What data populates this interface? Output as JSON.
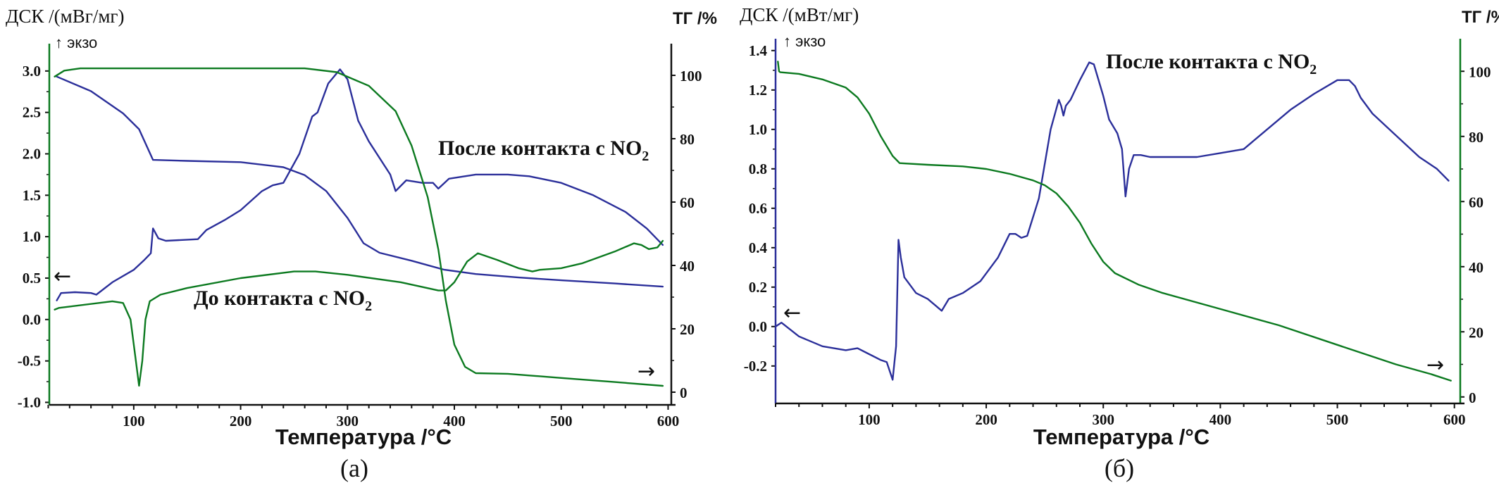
{
  "colors": {
    "dsc_blue": "#2b2f9a",
    "green": "#0c7a20",
    "axis_black": "#111111"
  },
  "chart_data": [
    {
      "type": "line",
      "panel_caption": "(а)",
      "xlabel": "Температура /°C",
      "ylabel_left": "ДСК /(мВг/мг)",
      "ylabel_right": "ТГ /%",
      "exo_label": "↑ экзо",
      "left_arrow": "←",
      "right_arrow": "→",
      "xlim": [
        21,
        603
      ],
      "ylim_left": [
        -1.03,
        3.33
      ],
      "ylim_right": [
        -4,
        110
      ],
      "xticks": [
        100,
        200,
        300,
        400,
        500,
        600
      ],
      "yticks_left": [
        "3.0",
        "2.5",
        "2.0",
        "1.5",
        "1.0",
        "0.5",
        "0.0",
        "-0.5",
        "-1.0"
      ],
      "yticks_left_values": [
        3.0,
        2.5,
        2.0,
        1.5,
        1.0,
        0.5,
        0.0,
        -0.5,
        -1.0
      ],
      "yticks_right": [
        100,
        80,
        60,
        40,
        20,
        0
      ],
      "annotations": [
        {
          "text": "После контакта с NO",
          "sub": "2"
        },
        {
          "text": "До контакта с NO",
          "sub": "2"
        }
      ],
      "series": [
        {
          "name": "ДСК после контакта с NO2",
          "axis": "left",
          "color": "dsc_blue",
          "x": [
            28,
            32,
            45,
            60,
            65,
            80,
            100,
            110,
            116,
            118,
            123,
            130,
            160,
            168,
            185,
            200,
            220,
            230,
            240,
            255,
            267,
            272,
            282,
            293,
            300,
            310,
            320,
            340,
            345,
            355,
            370,
            380,
            385,
            395,
            420,
            450,
            470,
            500,
            530,
            560,
            580,
            595
          ],
          "y": [
            0.23,
            0.32,
            0.33,
            0.32,
            0.3,
            0.45,
            0.6,
            0.72,
            0.8,
            1.1,
            0.98,
            0.95,
            0.97,
            1.08,
            1.2,
            1.32,
            1.55,
            1.62,
            1.65,
            2.0,
            2.45,
            2.5,
            2.85,
            3.02,
            2.9,
            2.4,
            2.15,
            1.75,
            1.55,
            1.68,
            1.65,
            1.65,
            1.58,
            1.7,
            1.75,
            1.75,
            1.73,
            1.65,
            1.5,
            1.3,
            1.1,
            0.9
          ]
        },
        {
          "name": "ТГ после контакта с NO2",
          "axis": "right",
          "color": "dsc_blue",
          "x": [
            28,
            60,
            90,
            105,
            118,
            150,
            200,
            240,
            260,
            280,
            300,
            315,
            330,
            360,
            390,
            420,
            460,
            500,
            550,
            595
          ],
          "y": [
            99.6,
            95,
            88,
            83,
            73.3,
            73,
            72.6,
            71,
            68.5,
            63.5,
            55,
            47,
            44,
            41.5,
            38.7,
            37.3,
            36.2,
            35.3,
            34.3,
            33.3
          ]
        },
        {
          "name": "ТГ до контакта с NO2",
          "axis": "right",
          "color": "green",
          "x": [
            26,
            35,
            50,
            260,
            290,
            320,
            345,
            360,
            375,
            385,
            392,
            400,
            410,
            420,
            450,
            500,
            550,
            595
          ],
          "y": [
            99.6,
            101.5,
            102.2,
            102.2,
            101,
            96.7,
            88.7,
            77.8,
            61.6,
            45,
            28.9,
            15,
            8,
            6,
            5.8,
            4.5,
            3.2,
            2
          ]
        },
        {
          "name": "ДСК до контакта с NO2",
          "axis": "left",
          "color": "green",
          "x": [
            26,
            30,
            80,
            90,
            97,
            102,
            105,
            108,
            111,
            115,
            125,
            150,
            200,
            250,
            270,
            300,
            350,
            385,
            392,
            400,
            412,
            422,
            440,
            460,
            473,
            480,
            500,
            520,
            550,
            568,
            575,
            582,
            590,
            595
          ],
          "y": [
            0.12,
            0.14,
            0.22,
            0.2,
            0.0,
            -0.5,
            -0.8,
            -0.5,
            0.0,
            0.22,
            0.3,
            0.38,
            0.5,
            0.58,
            0.58,
            0.54,
            0.45,
            0.35,
            0.35,
            0.45,
            0.7,
            0.8,
            0.72,
            0.62,
            0.58,
            0.6,
            0.62,
            0.68,
            0.82,
            0.92,
            0.9,
            0.85,
            0.87,
            0.95
          ]
        }
      ]
    },
    {
      "type": "line",
      "panel_caption": "(б)",
      "xlabel": "Температура /°C",
      "ylabel_left": "ДСК /(мВт/мг)",
      "ylabel_right": "ТГ /%",
      "exo_label": "↑ экзо",
      "left_arrow": "←",
      "right_arrow": "→",
      "xlim": [
        20,
        605
      ],
      "ylim_left": [
        -0.39,
        1.46
      ],
      "ylim_right": [
        -2,
        110
      ],
      "xticks": [
        100,
        200,
        300,
        400,
        500,
        600
      ],
      "yticks_left": [
        "1.4",
        "1.2",
        "1.0",
        "0.8",
        "0.6",
        "0.4",
        "0.2",
        "0.0",
        "-0.2"
      ],
      "yticks_left_values": [
        1.4,
        1.2,
        1.0,
        0.8,
        0.6,
        0.4,
        0.2,
        0.0,
        -0.2
      ],
      "yticks_right": [
        100,
        80,
        60,
        40,
        20,
        0
      ],
      "annotations": [
        {
          "text": "После контакта с NO",
          "sub": "2"
        }
      ],
      "series": [
        {
          "name": "ДСК после контакта с NO2",
          "axis": "left",
          "color": "dsc_blue",
          "x": [
            20,
            25,
            40,
            60,
            80,
            90,
            100,
            110,
            115,
            120,
            123,
            125,
            127,
            130,
            140,
            150,
            158,
            162,
            168,
            180,
            195,
            210,
            220,
            225,
            230,
            235,
            245,
            255,
            262,
            264,
            266,
            268,
            272,
            280,
            288,
            292,
            300,
            305,
            312,
            316,
            319,
            322,
            326,
            332,
            340,
            360,
            380,
            400,
            420,
            440,
            460,
            480,
            500,
            510,
            515,
            520,
            530,
            550,
            570,
            585,
            595
          ],
          "y": [
            0.0,
            0.02,
            -0.05,
            -0.1,
            -0.12,
            -0.11,
            -0.14,
            -0.17,
            -0.18,
            -0.27,
            -0.1,
            0.44,
            0.35,
            0.25,
            0.17,
            0.14,
            0.1,
            0.08,
            0.14,
            0.17,
            0.23,
            0.35,
            0.47,
            0.47,
            0.45,
            0.46,
            0.65,
            1.0,
            1.15,
            1.12,
            1.07,
            1.12,
            1.15,
            1.25,
            1.34,
            1.33,
            1.17,
            1.05,
            0.98,
            0.9,
            0.66,
            0.8,
            0.87,
            0.87,
            0.86,
            0.86,
            0.86,
            0.88,
            0.9,
            1.0,
            1.1,
            1.18,
            1.25,
            1.25,
            1.22,
            1.16,
            1.08,
            0.97,
            0.86,
            0.8,
            0.74
          ]
        },
        {
          "name": "ТГ после контакта с NO2",
          "axis": "right",
          "color": "green",
          "x": [
            22,
            23,
            24,
            40,
            60,
            80,
            90,
            100,
            110,
            120,
            126,
            150,
            180,
            200,
            220,
            240,
            250,
            260,
            270,
            280,
            290,
            300,
            310,
            330,
            350,
            400,
            450,
            500,
            550,
            580,
            597
          ],
          "y": [
            103,
            100,
            99.7,
            99.2,
            97.5,
            95,
            92,
            87,
            80,
            74,
            71.8,
            71.3,
            70.8,
            70,
            68.5,
            66.5,
            65,
            62.5,
            58.5,
            53.5,
            47,
            41.5,
            38,
            34.5,
            32,
            27,
            22,
            16,
            10,
            7,
            5
          ]
        }
      ]
    }
  ]
}
